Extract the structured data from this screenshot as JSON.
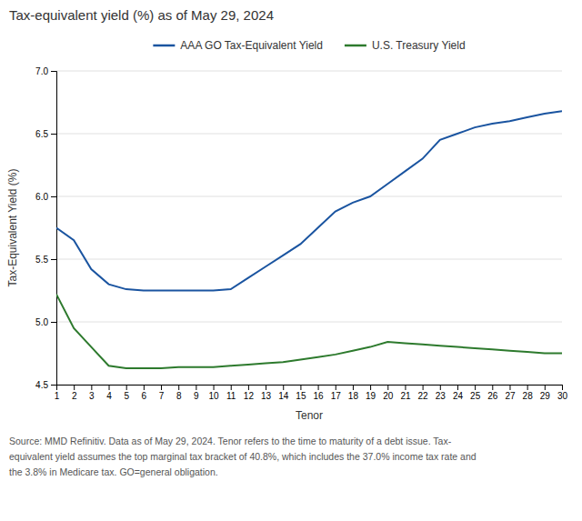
{
  "chart_data": {
    "type": "line",
    "title": "Tax-equivalent yield (%) as of May 29, 2024",
    "x_label": "Tenor",
    "y_label": "Tax-Equivalent Yield (%)",
    "x": [
      1,
      2,
      3,
      4,
      5,
      6,
      7,
      8,
      9,
      10,
      11,
      12,
      13,
      14,
      15,
      16,
      17,
      18,
      19,
      20,
      21,
      22,
      23,
      24,
      25,
      26,
      27,
      28,
      29,
      30
    ],
    "xlim": [
      1,
      30
    ],
    "xticks": [
      1,
      2,
      3,
      4,
      5,
      6,
      7,
      8,
      9,
      10,
      11,
      12,
      13,
      14,
      15,
      16,
      17,
      18,
      19,
      20,
      21,
      22,
      23,
      24,
      25,
      26,
      27,
      28,
      29,
      30
    ],
    "ylim": [
      4.5,
      7.0
    ],
    "yticks": [
      4.5,
      {
        "value": 5.0,
        "label": "5.0"
      },
      5.5,
      {
        "value": 6.0,
        "label": "6.0"
      },
      6.5,
      {
        "value": 7.0,
        "label": "7.0"
      }
    ],
    "series": [
      {
        "name": "AAA GO Tax-Equivalent Yield",
        "color": "#1a54a0",
        "values": [
          5.75,
          5.65,
          5.42,
          5.3,
          5.26,
          5.25,
          5.25,
          5.25,
          5.25,
          5.25,
          5.26,
          5.35,
          5.44,
          5.53,
          5.62,
          5.75,
          5.88,
          5.95,
          6.0,
          6.1,
          6.2,
          6.3,
          6.45,
          6.5,
          6.55,
          6.58,
          6.6,
          6.63,
          6.66,
          6.68
        ]
      },
      {
        "name": "U.S. Treasury Yield",
        "color": "#2d7a2d",
        "values": [
          5.22,
          4.95,
          4.8,
          4.65,
          4.63,
          4.63,
          4.63,
          4.64,
          4.64,
          4.64,
          4.65,
          4.66,
          4.67,
          4.68,
          4.7,
          4.72,
          4.74,
          4.77,
          4.8,
          4.84,
          4.83,
          4.82,
          4.81,
          4.8,
          4.79,
          4.78,
          4.77,
          4.76,
          4.75,
          4.75
        ]
      }
    ],
    "grid": "y",
    "legend": "top",
    "annotations": [
      "Source: MMD Refinitiv. Data as of May 29, 2024. Tenor refers to the time to maturity of a debt issue. Tax-",
      "equivalent yield assumes the top marginal tax bracket of 40.8%, which includes the 37.0% income tax rate and",
      "the 3.8% in Medicare tax. GO=general obligation."
    ]
  }
}
